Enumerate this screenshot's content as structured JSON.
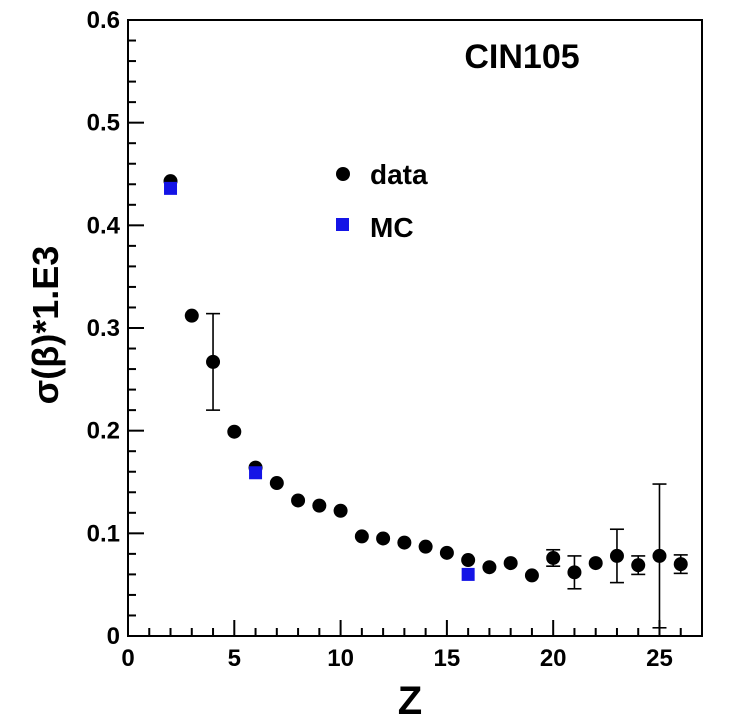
{
  "chart_data": {
    "type": "scatter",
    "title": "CIN105",
    "xlabel": "Z",
    "ylabel": "σ(β)*1.E3",
    "xlim": [
      0,
      27
    ],
    "ylim": [
      0,
      0.6
    ],
    "xticks": [
      "0",
      "5",
      "10",
      "15",
      "20",
      "25"
    ],
    "yticks": [
      "0",
      "0.1",
      "0.2",
      "0.3",
      "0.4",
      "0.5",
      "0.6"
    ],
    "grid": false,
    "legend_position": "upper-center",
    "series": [
      {
        "name": "data",
        "marker": "circle",
        "color": "#000000",
        "points": [
          {
            "x": 2,
            "y": 0.443,
            "err": 0
          },
          {
            "x": 3,
            "y": 0.312,
            "err": 0
          },
          {
            "x": 4,
            "y": 0.267,
            "err": 0.047
          },
          {
            "x": 5,
            "y": 0.199,
            "err": 0
          },
          {
            "x": 6,
            "y": 0.164,
            "err": 0
          },
          {
            "x": 7,
            "y": 0.149,
            "err": 0
          },
          {
            "x": 8,
            "y": 0.132,
            "err": 0
          },
          {
            "x": 9,
            "y": 0.127,
            "err": 0
          },
          {
            "x": 10,
            "y": 0.122,
            "err": 0
          },
          {
            "x": 11,
            "y": 0.097,
            "err": 0
          },
          {
            "x": 12,
            "y": 0.095,
            "err": 0
          },
          {
            "x": 13,
            "y": 0.091,
            "err": 0
          },
          {
            "x": 14,
            "y": 0.087,
            "err": 0
          },
          {
            "x": 15,
            "y": 0.081,
            "err": 0
          },
          {
            "x": 16,
            "y": 0.074,
            "err": 0
          },
          {
            "x": 17,
            "y": 0.067,
            "err": 0
          },
          {
            "x": 18,
            "y": 0.071,
            "err": 0
          },
          {
            "x": 19,
            "y": 0.059,
            "err": 0
          },
          {
            "x": 20,
            "y": 0.076,
            "err": 0.008
          },
          {
            "x": 21,
            "y": 0.062,
            "err": 0.016
          },
          {
            "x": 22,
            "y": 0.071,
            "err": 0
          },
          {
            "x": 23,
            "y": 0.078,
            "err": 0.026
          },
          {
            "x": 24,
            "y": 0.069,
            "err": 0.009
          },
          {
            "x": 25,
            "y": 0.078,
            "err": 0.07
          },
          {
            "x": 26,
            "y": 0.07,
            "err": 0.009
          }
        ]
      },
      {
        "name": "MC",
        "marker": "square",
        "color": "#1414e6",
        "points": [
          {
            "x": 2,
            "y": 0.436,
            "err": 0
          },
          {
            "x": 6,
            "y": 0.159,
            "err": 0
          },
          {
            "x": 16,
            "y": 0.06,
            "err": 0
          }
        ]
      }
    ]
  }
}
